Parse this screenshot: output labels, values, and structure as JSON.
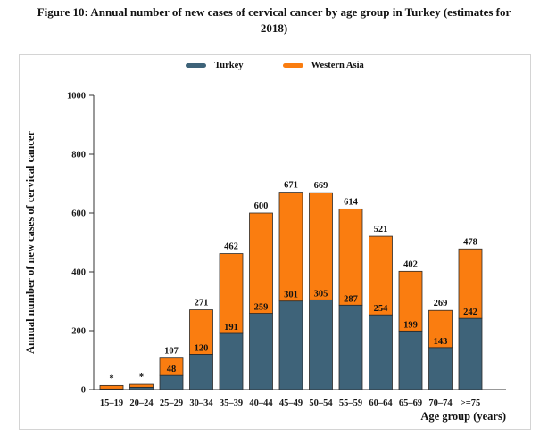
{
  "caption": {
    "line1": "Figure 10: Annual number of new cases of cervical cancer by age group in Turkey (estimates for",
    "line2": "2018)"
  },
  "chart_data": {
    "type": "bar",
    "subtype": "stacked",
    "title": "Figure 10: Annual number of new cases of cervical cancer by age group in Turkey (estimates for 2018)",
    "xlabel": "Age group (years)",
    "ylabel": "Annual number of new cases of cervical cancer",
    "ylim": [
      0,
      1000
    ],
    "yticks": [
      0,
      200,
      400,
      600,
      800,
      1000
    ],
    "legend_position": "top-center",
    "grid": false,
    "categories": [
      "15–19",
      "20–24",
      "25–29",
      "30–34",
      "35–39",
      "40–44",
      "45–49",
      "50–54",
      "55–59",
      "60–64",
      "65–69",
      "70–74",
      ">=75"
    ],
    "series": [
      {
        "name": "Turkey",
        "color": "#3e6379",
        "values": [
          2,
          8,
          48,
          120,
          191,
          259,
          301,
          305,
          287,
          254,
          199,
          143,
          242
        ]
      },
      {
        "name": "Western Asia",
        "color": "#fa7d10",
        "values": [
          12,
          10,
          59,
          151,
          271,
          341,
          370,
          364,
          327,
          267,
          203,
          126,
          236
        ]
      }
    ],
    "total_labels": [
      "*",
      "*",
      "107",
      "271",
      "462",
      "600",
      "671",
      "669",
      "614",
      "521",
      "402",
      "269",
      "478"
    ],
    "turkey_segment_labels": [
      "",
      "",
      "48",
      "120",
      "191",
      "259",
      "301",
      "305",
      "287",
      "254",
      "199",
      "143",
      "242"
    ],
    "bar_outline_color": "#2b2b2b",
    "axis_color": "#333333",
    "text_color": "#111111"
  }
}
